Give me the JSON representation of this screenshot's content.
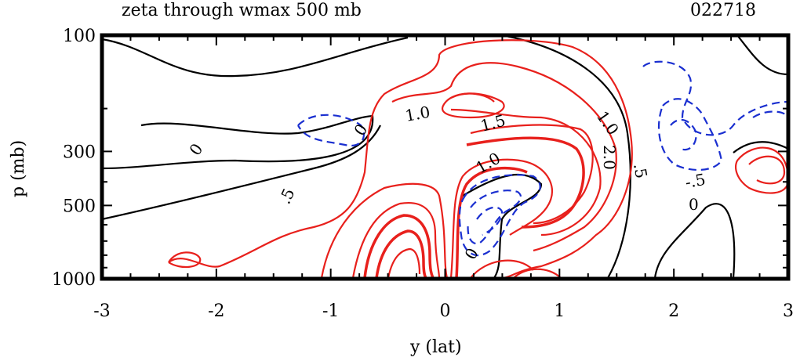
{
  "chart_data": {
    "type": "contour",
    "title": "zeta through wmax 500 mb",
    "run_label": "022718",
    "xlabel": "y (lat)",
    "ylabel": "p (mb)",
    "xlim": [
      -3,
      3
    ],
    "ylim": [
      1000,
      100
    ],
    "x_ticks": [
      "-3",
      "-2",
      "-1",
      "0",
      "1",
      "2",
      "3"
    ],
    "y_ticks": [
      "100",
      "300",
      "500",
      "1000"
    ],
    "colors": {
      "positive": "#e8201c",
      "zero": "#000000",
      "negative": "#1a2fd0"
    },
    "contour_labels": [
      {
        "text": "1.0",
        "color": "#000000"
      },
      {
        "text": "1.5",
        "color": "#000000"
      },
      {
        "text": "1.0",
        "color": "#000000"
      },
      {
        "text": "2.0",
        "color": "#000000"
      },
      {
        "text": ".5",
        "color": "#000000"
      },
      {
        "text": "0",
        "color": "#000000"
      },
      {
        "text": "0",
        "color": "#000000"
      },
      {
        "text": ".5",
        "color": "#000000"
      },
      {
        "text": "-.5",
        "color": "#000000"
      },
      {
        "text": "0",
        "color": "#000000"
      },
      {
        "text": "1.0",
        "color": "#000000"
      },
      {
        "text": "0",
        "color": "#000000"
      }
    ]
  }
}
